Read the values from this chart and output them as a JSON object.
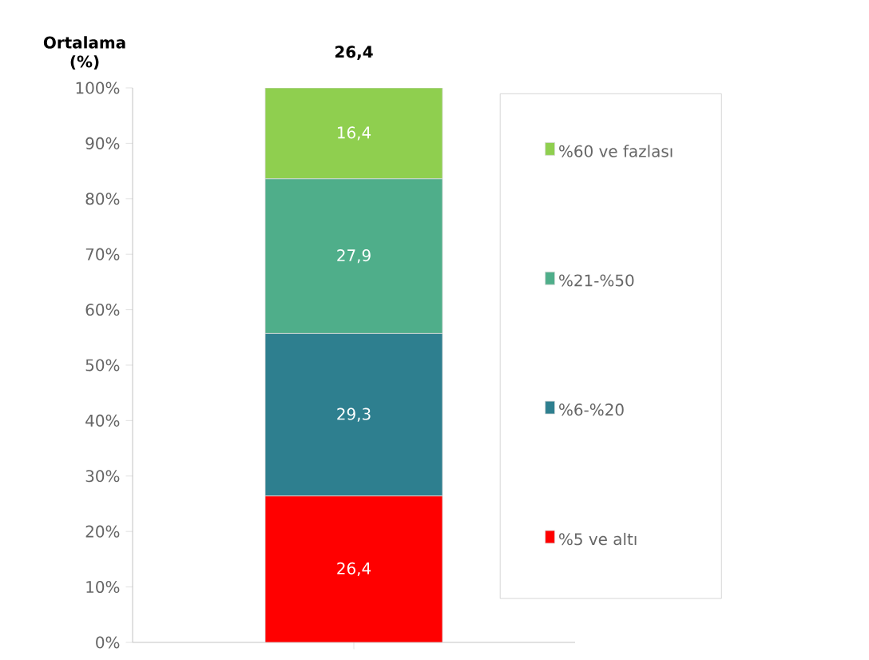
{
  "chart_data": {
    "type": "bar",
    "stacked": true,
    "ylabel": "Ortalama (%)",
    "annotations": [
      "26,4"
    ],
    "categories": [
      null
    ],
    "ylim": [
      0,
      100
    ],
    "yticks": [
      {
        "value": 0,
        "label": "0%"
      },
      {
        "value": 10,
        "label": "10%"
      },
      {
        "value": 20,
        "label": "20%"
      },
      {
        "value": 30,
        "label": "30%"
      },
      {
        "value": 40,
        "label": "40%"
      },
      {
        "value": 50,
        "label": "50%"
      },
      {
        "value": 60,
        "label": "60%"
      },
      {
        "value": 70,
        "label": "70%"
      },
      {
        "value": 80,
        "label": "80%"
      },
      {
        "value": 90,
        "label": "90%"
      },
      {
        "value": 100,
        "label": "100%"
      }
    ],
    "tick_labels": "y",
    "legend": "right",
    "grid": false,
    "series": [
      {
        "name": "%5 ve altı",
        "color": "#ff0000",
        "values": [
          26.4
        ],
        "value_labels": [
          "26,4"
        ]
      },
      {
        "name": "%6-%20",
        "color": "#2e7f8f",
        "values": [
          29.3
        ],
        "value_labels": [
          "29,3"
        ]
      },
      {
        "name": "%21-%50",
        "color": "#4fae8a",
        "values": [
          27.9
        ],
        "value_labels": [
          "27,9"
        ]
      },
      {
        "name": "%60 ve fazlası",
        "color": "#8fcf4f",
        "values": [
          16.4
        ],
        "value_labels": [
          "16,4"
        ]
      }
    ]
  }
}
